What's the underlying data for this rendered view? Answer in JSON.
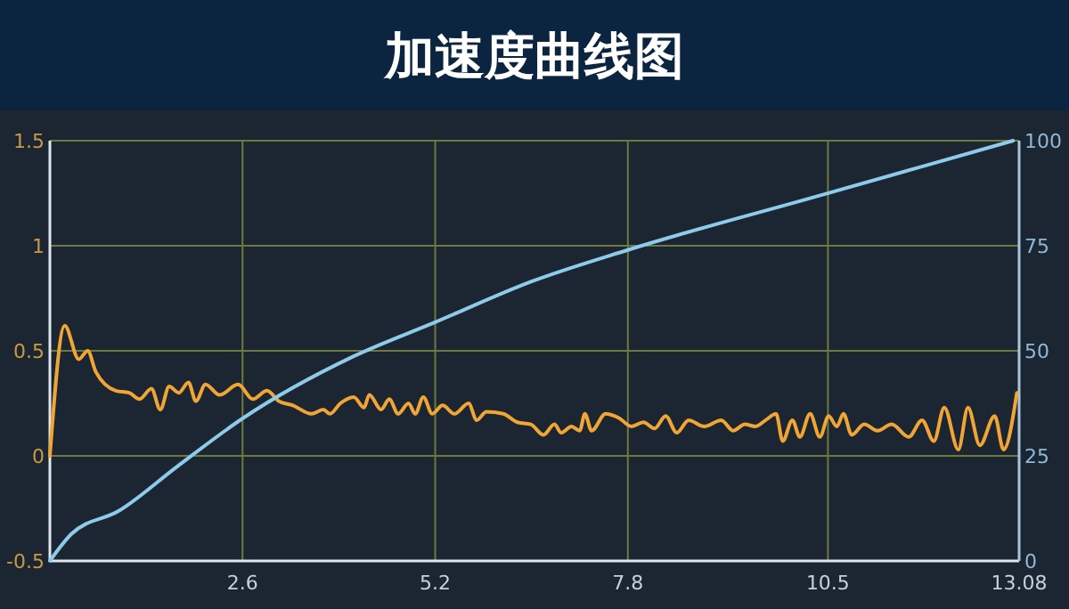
{
  "chart_data": {
    "type": "line",
    "title": "加速度曲线图",
    "xlim": [
      0,
      13.08
    ],
    "xticks": [
      2.6,
      5.2,
      7.8,
      10.5,
      13.08
    ],
    "ylim": [
      -0.5,
      1.5
    ],
    "yticks": [
      -0.5,
      0,
      0.5,
      1,
      1.5
    ],
    "y2lim": [
      0,
      100
    ],
    "y2ticks": [
      0,
      25,
      50,
      75,
      100
    ],
    "grid": true,
    "series": [
      {
        "color": "#f0a535",
        "x": [
          0,
          0.2,
          0.39,
          0.51,
          0.62,
          0.89,
          1.07,
          1.21,
          1.37,
          1.49,
          1.61,
          1.74,
          1.87,
          1.97,
          2.1,
          2.29,
          2.54,
          2.74,
          2.93,
          3.09,
          3.28,
          3.53,
          3.69,
          3.78,
          3.92,
          4.1,
          4.24,
          4.31,
          4.47,
          4.58,
          4.7,
          4.84,
          4.93,
          5.04,
          5.16,
          5.3,
          5.46,
          5.65,
          5.76,
          5.89,
          6.12,
          6.31,
          6.49,
          6.66,
          6.81,
          6.9,
          7.04,
          7.15,
          7.22,
          7.31,
          7.5,
          7.68,
          7.85,
          8.01,
          8.16,
          8.31,
          8.46,
          8.62,
          8.83,
          9.06,
          9.22,
          9.38,
          9.52,
          9.66,
          9.8,
          9.89,
          10.02,
          10.12,
          10.26,
          10.39,
          10.51,
          10.62,
          10.71,
          10.82,
          10.99,
          11.17,
          11.36,
          11.59,
          11.77,
          11.93,
          12.07,
          12.26,
          12.39,
          12.55,
          12.75,
          12.87,
          13.05
        ],
        "values": [
          0,
          0.62,
          0.46,
          0.5,
          0.4,
          0.31,
          0.3,
          0.27,
          0.32,
          0.22,
          0.33,
          0.3,
          0.35,
          0.26,
          0.34,
          0.29,
          0.34,
          0.27,
          0.31,
          0.26,
          0.24,
          0.2,
          0.22,
          0.2,
          0.25,
          0.28,
          0.23,
          0.29,
          0.22,
          0.27,
          0.2,
          0.25,
          0.2,
          0.28,
          0.2,
          0.24,
          0.2,
          0.25,
          0.17,
          0.21,
          0.2,
          0.16,
          0.15,
          0.1,
          0.15,
          0.11,
          0.14,
          0.12,
          0.2,
          0.12,
          0.2,
          0.18,
          0.14,
          0.16,
          0.13,
          0.19,
          0.11,
          0.17,
          0.14,
          0.17,
          0.12,
          0.15,
          0.14,
          0.17,
          0.2,
          0.07,
          0.17,
          0.09,
          0.2,
          0.09,
          0.19,
          0.14,
          0.2,
          0.1,
          0.15,
          0.12,
          0.15,
          0.09,
          0.17,
          0.07,
          0.23,
          0.03,
          0.23,
          0.05,
          0.19,
          0.03,
          0.3
        ]
      },
      {
        "color": "#8ecbea",
        "axis": "y2",
        "x": [
          0,
          0.29,
          0.93,
          1.72,
          2.6,
          4.1,
          5.2,
          6.5,
          7.8,
          10.4,
          13.0
        ],
        "values": [
          0,
          6.4,
          11.9,
          22.5,
          33.9,
          48.7,
          56.8,
          66.5,
          74,
          87,
          100
        ]
      }
    ]
  }
}
